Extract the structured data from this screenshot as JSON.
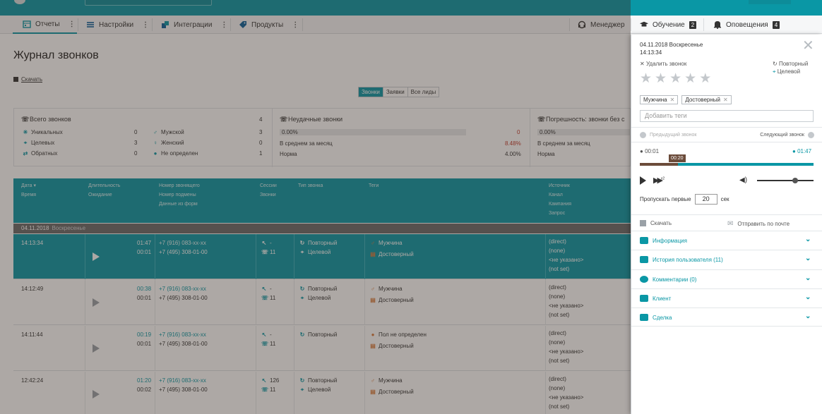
{
  "nav": {
    "items": [
      {
        "label": "Отчеты"
      },
      {
        "label": "Настройки"
      },
      {
        "label": "Интеграции"
      },
      {
        "label": "Продукты"
      }
    ],
    "right": [
      {
        "label": "Менеджер"
      },
      {
        "label": "Обучение",
        "badge": "2"
      },
      {
        "label": "Оповещения",
        "badge": "4"
      }
    ]
  },
  "page": {
    "title": "Журнал звонков",
    "download": "Скачать",
    "filters": [
      "Звонки",
      "Заявки",
      "Все лиды"
    ]
  },
  "stats": {
    "total": {
      "title": "Всего звонков",
      "value": "4",
      "rows": [
        {
          "label": "Уникальных",
          "value": "0"
        },
        {
          "label": "Целевых",
          "value": "3"
        },
        {
          "label": "Обратных",
          "value": "0"
        }
      ],
      "gender": [
        {
          "label": "Мужской",
          "value": "3"
        },
        {
          "label": "Женский",
          "value": "0"
        },
        {
          "label": "Не определен",
          "value": "1"
        }
      ]
    },
    "failed": {
      "title": "Неудачные звонки",
      "percent": "0.00%",
      "count": "0",
      "avg_label": "В среднем за месяц",
      "avg_value": "8.48%",
      "norm_label": "Норма",
      "norm_value": "4.00%"
    },
    "error": {
      "title": "Погрешность: звонки без с",
      "percent": "0.00%",
      "avg_label": "В среднем за месяц",
      "norm_label": "Норма"
    }
  },
  "table": {
    "headers": {
      "date": "Дата",
      "time": "Время",
      "duration": "Длительность",
      "wait": "Ожидание",
      "caller": "Номер звонящего",
      "sub": "Номер подмены",
      "form": "Данные из форм",
      "sessions": "Сессии",
      "calls": "Звонки",
      "type": "Тип звонка",
      "tags": "Теги",
      "source": "Источник",
      "channel": "Канал",
      "campaign": "Кампания",
      "query": "Запрос"
    },
    "group": {
      "date": "04.11.2018",
      "dow": "Воскресенье"
    },
    "rows": [
      {
        "time": "14:13:34",
        "dur": "01:47",
        "wait": "00:01",
        "caller": "+7 (916) 083-xx-xx",
        "sub": "+7 (495) 308-01-00",
        "sessions": "-",
        "calls": "11",
        "type1": "Повторный",
        "type2": "Целевой",
        "tag1": "Мужчина",
        "tag2": "Достоверный",
        "src": "(direct)",
        "ch": "(none)",
        "camp": "<не указано>",
        "q": "(not set)"
      },
      {
        "time": "14:12:49",
        "dur": "00:38",
        "wait": "00:01",
        "caller": "+7 (916) 083-xx-xx",
        "sub": "+7 (495) 308-01-00",
        "sessions": "-",
        "calls": "11",
        "type1": "Повторный",
        "type2": "Целевой",
        "tag1": "Мужчина",
        "tag2": "Достоверный",
        "src": "(direct)",
        "ch": "(none)",
        "camp": "<не указано>",
        "q": "(not set)"
      },
      {
        "time": "14:11:44",
        "dur": "00:19",
        "wait": "00:01",
        "caller": "+7 (916) 083-xx-xx",
        "sub": "+7 (495) 308-01-00",
        "sessions": "-",
        "calls": "11",
        "type1": "Повторный",
        "type2": "",
        "tag1": "Пол не определен",
        "tag2": "Достоверный",
        "src": "(direct)",
        "ch": "(none)",
        "camp": "<не указано>",
        "q": "(not set)"
      },
      {
        "time": "12:42:24",
        "dur": "01:20",
        "wait": "00:02",
        "caller": "+7 (916) 083-xx-xx",
        "sub": "+7 (495) 308-01-00",
        "sessions": "126",
        "calls": "11",
        "type1": "Повторный",
        "type2": "Целевой",
        "tag1": "Мужчина",
        "tag2": "Достоверный",
        "src": "(direct)",
        "ch": "(none)",
        "camp": "<не указано>",
        "q": "(not set)"
      }
    ]
  },
  "panel": {
    "date": "04.11.2018 Воскресенье",
    "time": "14:13:34",
    "delete": "Удалить звонок",
    "flag1": "Повторный",
    "flag2": "Целевой",
    "tags": [
      "Мужчина",
      "Достоверный"
    ],
    "tag_placeholder": "Добавить теги",
    "prev": "Предыдущий звонок",
    "next": "Следующий звонок",
    "t_start": "00:01",
    "t_end": "01:47",
    "t_cursor": "00:20",
    "speed": "x2",
    "skip_label": "Пропускать первые",
    "skip_value": "20",
    "skip_unit": "сек",
    "download": "Скачать",
    "email": "Отправить по почте",
    "sections": [
      "Информация",
      "История пользователя (11)",
      "Комментарии (0)",
      "Клиент",
      "Сделка"
    ]
  }
}
